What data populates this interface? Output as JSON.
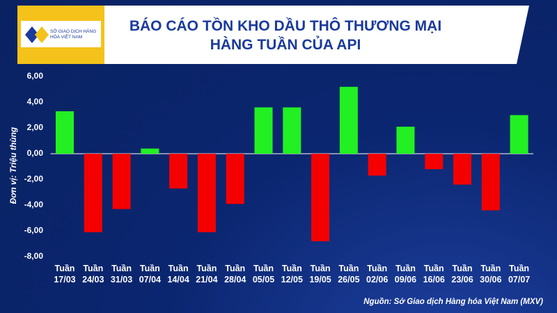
{
  "logo": "SỞ GIAO DỊCH HÀNG HÓA VIỆT NAM",
  "chart_data": {
    "type": "bar",
    "title": "BÁO CÁO TỒN KHO DẦU THÔ THƯƠNG MẠI HÀNG TUẦN CỦA API",
    "y_label": "Đơn vị: Triệu thùng",
    "source": "Nguồn: Sở Giao dịch Hàng hóa Việt Nam (MXV)",
    "categories": [
      "Tuần 17/03",
      "Tuần 24/03",
      "Tuần 31/03",
      "Tuần 07/04",
      "Tuần 14/04",
      "Tuần 21/04",
      "Tuần 28/04",
      "Tuần 05/05",
      "Tuần 12/05",
      "Tuần 19/05",
      "Tuần 26/05",
      "Tuần 02/06",
      "Tuần 09/06",
      "Tuần 16/06",
      "Tuần 23/06",
      "Tuần 30/06",
      "Tuần 07/07"
    ],
    "values": [
      3.3,
      -6.1,
      -4.3,
      0.4,
      -2.7,
      -6.1,
      -3.9,
      3.6,
      3.6,
      -6.8,
      5.2,
      -1.7,
      2.1,
      -1.2,
      -2.4,
      -4.4,
      3.0
    ],
    "positive_color": "#22f022",
    "negative_color": "#f50000",
    "ylim": [
      -8,
      6
    ],
    "yticks": [
      {
        "value": -8,
        "label": "-8,00"
      },
      {
        "value": -6,
        "label": "-6,00"
      },
      {
        "value": -4,
        "label": "-4,00"
      },
      {
        "value": -2,
        "label": "-2,00"
      },
      {
        "value": 0,
        "label": "0,00"
      },
      {
        "value": 2,
        "label": "2,00"
      },
      {
        "value": 4,
        "label": "4,00"
      },
      {
        "value": 6,
        "label": "6,00"
      }
    ]
  }
}
